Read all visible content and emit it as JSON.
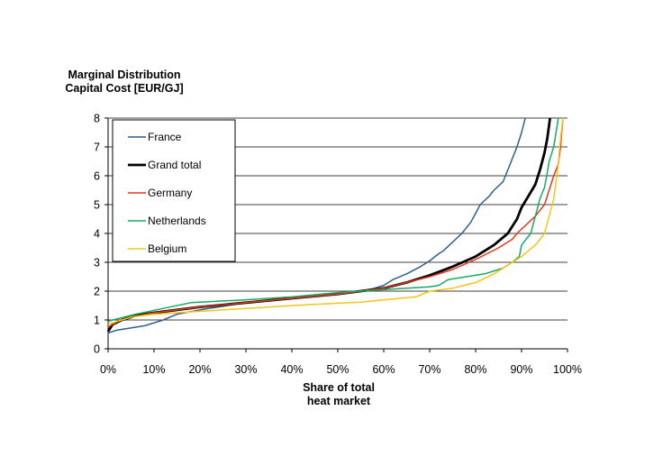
{
  "chart_data": {
    "type": "line",
    "title": "",
    "ylabel_line1": "Marginal Distribution",
    "ylabel_line2": "Capital Cost [EUR/GJ]",
    "xlabel_line1": "Share of total",
    "xlabel_line2": "heat market",
    "xlim": [
      0,
      100
    ],
    "ylim": [
      0,
      8
    ],
    "x_tick_labels": [
      "0%",
      "10%",
      "20%",
      "30%",
      "40%",
      "50%",
      "60%",
      "70%",
      "80%",
      "90%",
      "100%"
    ],
    "y_tick_labels": [
      "0",
      "1",
      "2",
      "3",
      "4",
      "5",
      "6",
      "7",
      "8"
    ],
    "grid": "horizontal",
    "legend_position": "top-left",
    "series": [
      {
        "name": "France",
        "color": "#2f5f8f",
        "width": 1.5,
        "points": [
          [
            0,
            0.55
          ],
          [
            2,
            0.65
          ],
          [
            4,
            0.7
          ],
          [
            8,
            0.8
          ],
          [
            12,
            1.0
          ],
          [
            15,
            1.2
          ],
          [
            20,
            1.35
          ],
          [
            30,
            1.6
          ],
          [
            40,
            1.75
          ],
          [
            50,
            1.9
          ],
          [
            55,
            2.0
          ],
          [
            58,
            2.1
          ],
          [
            60,
            2.2
          ],
          [
            62,
            2.4
          ],
          [
            65,
            2.6
          ],
          [
            68,
            2.85
          ],
          [
            70,
            3.05
          ],
          [
            72,
            3.3
          ],
          [
            73,
            3.4
          ],
          [
            75,
            3.7
          ],
          [
            77,
            4.0
          ],
          [
            79,
            4.4
          ],
          [
            80,
            4.7
          ],
          [
            81,
            5.0
          ],
          [
            83,
            5.3
          ],
          [
            84,
            5.5
          ],
          [
            86,
            5.8
          ],
          [
            87,
            6.2
          ],
          [
            88,
            6.6
          ],
          [
            89,
            7.0
          ],
          [
            90,
            7.5
          ],
          [
            90.8,
            8.0
          ]
        ]
      },
      {
        "name": "Grand total",
        "color": "#000000",
        "width": 2.8,
        "points": [
          [
            0,
            0.6
          ],
          [
            1,
            0.85
          ],
          [
            3,
            1.0
          ],
          [
            6,
            1.15
          ],
          [
            10,
            1.25
          ],
          [
            15,
            1.35
          ],
          [
            20,
            1.45
          ],
          [
            30,
            1.6
          ],
          [
            40,
            1.75
          ],
          [
            50,
            1.9
          ],
          [
            55,
            2.0
          ],
          [
            60,
            2.1
          ],
          [
            65,
            2.3
          ],
          [
            70,
            2.55
          ],
          [
            75,
            2.85
          ],
          [
            80,
            3.2
          ],
          [
            84,
            3.6
          ],
          [
            87,
            4.0
          ],
          [
            89,
            4.5
          ],
          [
            90,
            4.9
          ],
          [
            91.5,
            5.3
          ],
          [
            93,
            5.7
          ],
          [
            94,
            6.2
          ],
          [
            95,
            6.8
          ],
          [
            95.6,
            7.3
          ],
          [
            96.2,
            8.0
          ]
        ]
      },
      {
        "name": "Germany",
        "color": "#e03a1a",
        "width": 1.5,
        "points": [
          [
            0,
            0.75
          ],
          [
            2,
            0.95
          ],
          [
            5,
            1.1
          ],
          [
            10,
            1.25
          ],
          [
            20,
            1.45
          ],
          [
            30,
            1.6
          ],
          [
            40,
            1.75
          ],
          [
            50,
            1.9
          ],
          [
            55,
            2.0
          ],
          [
            60,
            2.1
          ],
          [
            65,
            2.3
          ],
          [
            70,
            2.5
          ],
          [
            75,
            2.75
          ],
          [
            80,
            3.1
          ],
          [
            85,
            3.5
          ],
          [
            88,
            3.8
          ],
          [
            89,
            4.0
          ],
          [
            91,
            4.3
          ],
          [
            93,
            4.6
          ],
          [
            95,
            5.0
          ],
          [
            96,
            5.5
          ],
          [
            97,
            6.0
          ],
          [
            98,
            6.4
          ],
          [
            98.5,
            7.0
          ],
          [
            99,
            8.0
          ]
        ]
      },
      {
        "name": "Netherlands",
        "color": "#1aa862",
        "width": 1.5,
        "points": [
          [
            0,
            0.95
          ],
          [
            1,
            1.0
          ],
          [
            6,
            1.2
          ],
          [
            12,
            1.4
          ],
          [
            18,
            1.6
          ],
          [
            30,
            1.7
          ],
          [
            40,
            1.8
          ],
          [
            50,
            1.95
          ],
          [
            55,
            2.0
          ],
          [
            60,
            2.05
          ],
          [
            65,
            2.1
          ],
          [
            70,
            2.15
          ],
          [
            72,
            2.2
          ],
          [
            74,
            2.4
          ],
          [
            78,
            2.5
          ],
          [
            82,
            2.6
          ],
          [
            86,
            2.8
          ],
          [
            88,
            3.0
          ],
          [
            89.5,
            3.2
          ],
          [
            90,
            3.6
          ],
          [
            91,
            3.8
          ],
          [
            92,
            4.0
          ],
          [
            93,
            4.6
          ],
          [
            94,
            5.2
          ],
          [
            95,
            5.6
          ],
          [
            95.5,
            6.0
          ],
          [
            96,
            6.5
          ],
          [
            97,
            7.0
          ],
          [
            97.5,
            7.5
          ],
          [
            98,
            8.0
          ]
        ]
      },
      {
        "name": "Belgium",
        "color": "#f5c518",
        "width": 1.5,
        "points": [
          [
            0,
            0.85
          ],
          [
            2,
            0.95
          ],
          [
            5,
            1.1
          ],
          [
            10,
            1.2
          ],
          [
            20,
            1.3
          ],
          [
            30,
            1.4
          ],
          [
            40,
            1.5
          ],
          [
            50,
            1.58
          ],
          [
            55,
            1.62
          ],
          [
            60,
            1.7
          ],
          [
            67,
            1.8
          ],
          [
            70,
            2.0
          ],
          [
            75,
            2.1
          ],
          [
            80,
            2.3
          ],
          [
            84,
            2.6
          ],
          [
            87,
            2.9
          ],
          [
            90,
            3.2
          ],
          [
            93,
            3.6
          ],
          [
            95,
            4.0
          ],
          [
            96,
            4.6
          ],
          [
            97,
            5.2
          ],
          [
            97.5,
            5.8
          ],
          [
            98,
            6.4
          ],
          [
            98.3,
            7.0
          ],
          [
            98.7,
            7.6
          ],
          [
            99,
            8.0
          ]
        ]
      }
    ]
  }
}
